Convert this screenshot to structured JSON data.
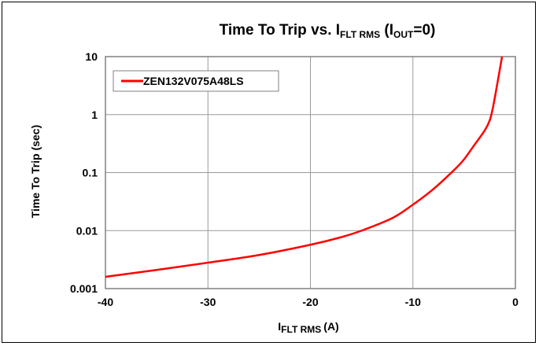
{
  "chart_data": {
    "type": "line",
    "title": {
      "main": "Time To Trip vs. I",
      "main_sub": "FLT RMS",
      "paren_open": " (I",
      "paren_sub": "OUT",
      "paren_close": "=0)"
    },
    "xlabel": {
      "main": "I",
      "sub": "FLT RMS",
      "rest": "(A)"
    },
    "ylabel": "Time To Trip (sec)",
    "xlim": [
      -40,
      0
    ],
    "ylim": [
      0.001,
      10
    ],
    "yscale": "log",
    "grid": true,
    "legend_position": "top-left",
    "x_ticks": [
      -40,
      -30,
      -20,
      -10,
      0
    ],
    "x_tick_labels": [
      "-40",
      "-30",
      "-20",
      "-10",
      "0"
    ],
    "y_ticks": [
      0.001,
      0.01,
      0.1,
      1,
      10
    ],
    "y_tick_labels": [
      "0.001",
      "0.01",
      "0.1",
      "1",
      "10"
    ],
    "series": [
      {
        "name": "ZEN132V075A48LS",
        "color": "#ff0000",
        "x": [
          -40,
          -35,
          -30,
          -25,
          -20,
          -17,
          -15,
          -12,
          -10,
          -8,
          -6,
          -5,
          -4,
          -3,
          -2.5,
          -2.2,
          -1.9,
          -1.6,
          -1.3
        ],
        "y": [
          0.0016,
          0.0021,
          0.0028,
          0.0038,
          0.0057,
          0.0077,
          0.01,
          0.0165,
          0.028,
          0.052,
          0.11,
          0.17,
          0.3,
          0.53,
          0.8,
          1.3,
          2.5,
          5,
          10
        ]
      }
    ]
  }
}
